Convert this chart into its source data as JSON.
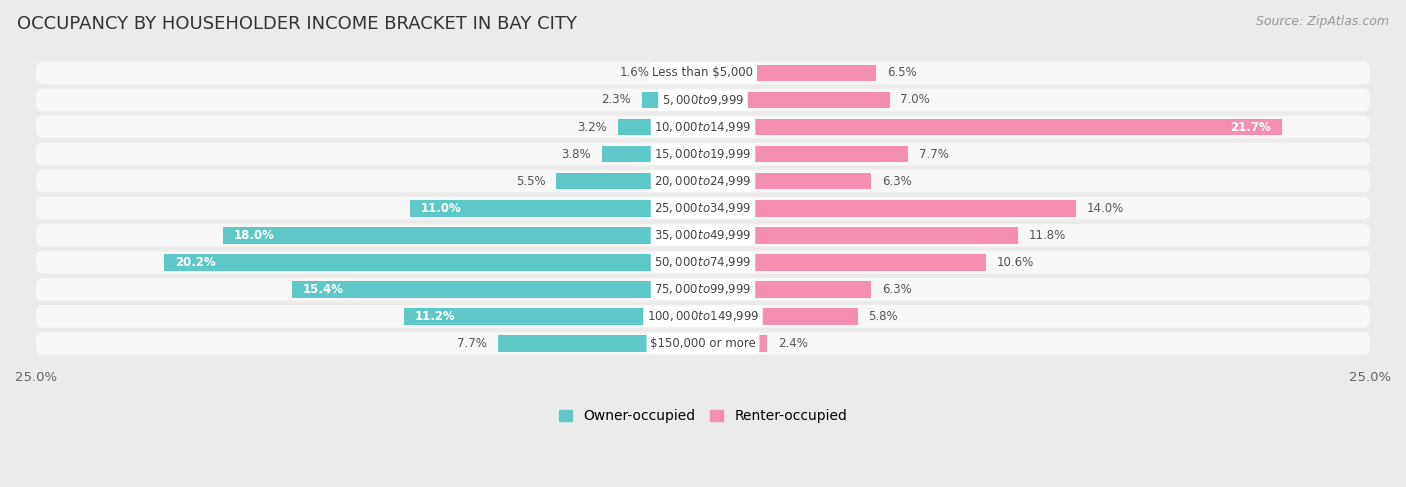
{
  "title": "OCCUPANCY BY HOUSEHOLDER INCOME BRACKET IN BAY CITY",
  "source": "Source: ZipAtlas.com",
  "categories": [
    "Less than $5,000",
    "$5,000 to $9,999",
    "$10,000 to $14,999",
    "$15,000 to $19,999",
    "$20,000 to $24,999",
    "$25,000 to $34,999",
    "$35,000 to $49,999",
    "$50,000 to $74,999",
    "$75,000 to $99,999",
    "$100,000 to $149,999",
    "$150,000 or more"
  ],
  "owner_values": [
    1.6,
    2.3,
    3.2,
    3.8,
    5.5,
    11.0,
    18.0,
    20.2,
    15.4,
    11.2,
    7.7
  ],
  "renter_values": [
    6.5,
    7.0,
    21.7,
    7.7,
    6.3,
    14.0,
    11.8,
    10.6,
    6.3,
    5.8,
    2.4
  ],
  "owner_color": "#5ec8c8",
  "renter_color": "#f48fb1",
  "background_color": "#ebebeb",
  "bar_background_color": "#f7f7f7",
  "bar_height": 0.62,
  "xlim": 25.0,
  "title_fontsize": 13,
  "tick_fontsize": 9.5,
  "legend_fontsize": 10,
  "source_fontsize": 9,
  "category_fontsize": 8.5,
  "value_fontsize": 8.5
}
